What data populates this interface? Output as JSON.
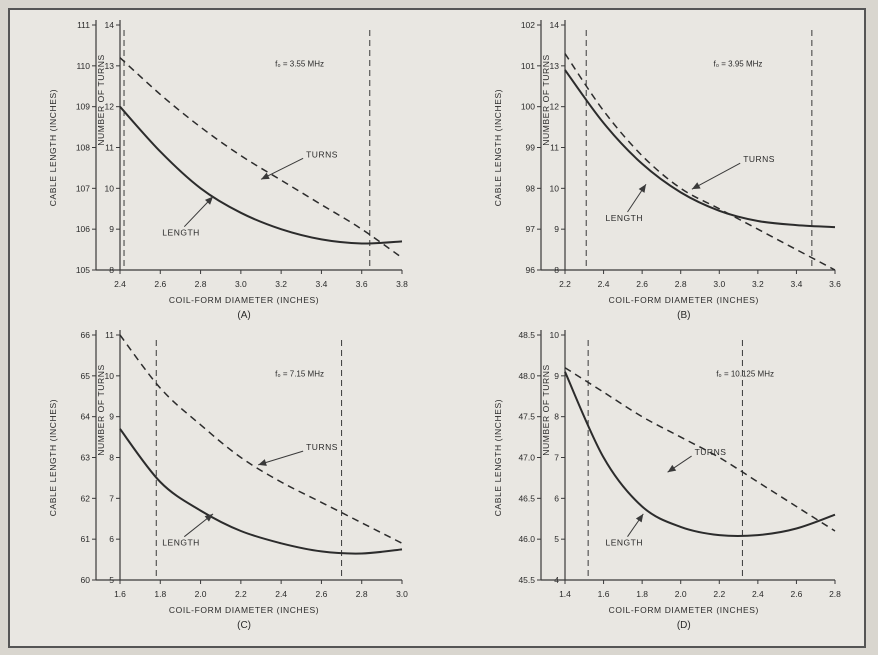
{
  "chart_data": [
    {
      "type": "line",
      "panel": "(A)",
      "annotation": "f₀ = 3.55 MHz",
      "xlabel": "COIL-FORM DIAMETER (INCHES)",
      "ylabel_left": "CABLE LENGTH (INCHES)",
      "ylabel_right": "NUMBER OF TURNS",
      "xlim": [
        2.4,
        3.8
      ],
      "xticks": [
        "2.4",
        "2.6",
        "2.8",
        "3.0",
        "3.2",
        "3.4",
        "3.6",
        "3.8"
      ],
      "ylim_left": [
        105,
        111
      ],
      "yticks_left": [
        "105",
        "106",
        "107",
        "108",
        "109",
        "110",
        "111"
      ],
      "ylim_right": [
        8,
        14
      ],
      "yticks_right": [
        "8",
        "9",
        "10",
        "11",
        "12",
        "13",
        "14"
      ],
      "vlines": [
        2.42,
        3.64
      ],
      "series": [
        {
          "name": "LENGTH",
          "axis": "left",
          "style": "solid",
          "x": [
            2.4,
            2.6,
            2.8,
            3.0,
            3.2,
            3.4,
            3.6,
            3.8
          ],
          "y": [
            109.0,
            107.9,
            107.0,
            106.4,
            106.0,
            105.75,
            105.65,
            105.7
          ]
        },
        {
          "name": "TURNS",
          "axis": "right",
          "style": "dashed",
          "x": [
            2.4,
            2.6,
            2.8,
            3.0,
            3.2,
            3.4,
            3.6,
            3.8
          ],
          "y": [
            13.2,
            12.3,
            11.5,
            10.8,
            10.2,
            9.6,
            9.0,
            8.3
          ]
        }
      ]
    },
    {
      "type": "line",
      "panel": "(B)",
      "annotation": "f₀ = 3.95 MHz",
      "xlabel": "COIL-FORM DIAMETER (INCHES)",
      "ylabel_left": "CABLE LENGTH (INCHES)",
      "ylabel_right": "NUMBER OF TURNS",
      "xlim": [
        2.2,
        3.6
      ],
      "xticks": [
        "2.2",
        "2.4",
        "2.6",
        "2.8",
        "3.0",
        "3.2",
        "3.4",
        "3.6"
      ],
      "ylim_left": [
        96,
        102
      ],
      "yticks_left": [
        "96",
        "97",
        "98",
        "99",
        "100",
        "101",
        "102"
      ],
      "ylim_right": [
        8,
        14
      ],
      "yticks_right": [
        "8",
        "9",
        "10",
        "11",
        "12",
        "13",
        "14"
      ],
      "vlines": [
        2.31,
        3.48
      ],
      "series": [
        {
          "name": "LENGTH",
          "axis": "left",
          "style": "solid",
          "x": [
            2.2,
            2.4,
            2.6,
            2.8,
            3.0,
            3.2,
            3.4,
            3.6
          ],
          "y": [
            100.9,
            99.6,
            98.6,
            97.9,
            97.45,
            97.2,
            97.1,
            97.05
          ]
        },
        {
          "name": "TURNS",
          "axis": "right",
          "style": "dashed",
          "x": [
            2.2,
            2.4,
            2.6,
            2.8,
            3.0,
            3.2,
            3.4,
            3.6
          ],
          "y": [
            13.3,
            11.9,
            10.8,
            10.0,
            9.5,
            9.0,
            8.5,
            8.0
          ]
        }
      ]
    },
    {
      "type": "line",
      "panel": "(C)",
      "annotation": "f₀ = 7.15 MHz",
      "xlabel": "COIL-FORM DIAMETER (INCHES)",
      "ylabel_left": "CABLE LENGTH (INCHES)",
      "ylabel_right": "NUMBER OF TURNS",
      "xlim": [
        1.6,
        3.0
      ],
      "xticks": [
        "1.6",
        "1.8",
        "2.0",
        "2.2",
        "2.4",
        "2.6",
        "2.8",
        "3.0"
      ],
      "ylim_left": [
        60,
        66
      ],
      "yticks_left": [
        "60",
        "61",
        "62",
        "63",
        "64",
        "65",
        "66"
      ],
      "ylim_right": [
        5,
        11
      ],
      "yticks_right": [
        "5",
        "6",
        "7",
        "8",
        "9",
        "10",
        "11"
      ],
      "vlines": [
        1.78,
        2.7
      ],
      "series": [
        {
          "name": "LENGTH",
          "axis": "left",
          "style": "solid",
          "x": [
            1.6,
            1.8,
            2.0,
            2.2,
            2.4,
            2.6,
            2.8,
            3.0
          ],
          "y": [
            63.7,
            62.4,
            61.7,
            61.2,
            60.9,
            60.7,
            60.65,
            60.75
          ]
        },
        {
          "name": "TURNS",
          "axis": "right",
          "style": "dashed",
          "x": [
            1.6,
            1.8,
            2.0,
            2.2,
            2.4,
            2.6,
            2.8,
            3.0
          ],
          "y": [
            11.0,
            9.7,
            8.8,
            8.0,
            7.4,
            6.9,
            6.4,
            5.9
          ]
        }
      ]
    },
    {
      "type": "line",
      "panel": "(D)",
      "annotation": "f₀ = 10.125 MHz",
      "xlabel": "COIL-FORM DIAMETER (INCHES)",
      "ylabel_left": "CABLE LENGTH (INCHES)",
      "ylabel_right": "NUMBER OF TURNS",
      "xlim": [
        1.4,
        2.8
      ],
      "xticks": [
        "1.4",
        "1.6",
        "1.8",
        "2.0",
        "2.2",
        "2.4",
        "2.6",
        "2.8"
      ],
      "ylim_left": [
        45.5,
        48.5
      ],
      "yticks_left": [
        "45.5",
        "46.0",
        "46.5",
        "47.0",
        "47.5",
        "48.0",
        "48.5"
      ],
      "ylim_right": [
        4,
        10
      ],
      "yticks_right": [
        "4",
        "5",
        "6",
        "7",
        "8",
        "9",
        "10"
      ],
      "vlines": [
        1.52,
        2.32
      ],
      "series": [
        {
          "name": "LENGTH",
          "axis": "left",
          "style": "solid",
          "x": [
            1.4,
            1.6,
            1.8,
            2.0,
            2.2,
            2.4,
            2.6,
            2.8
          ],
          "y": [
            48.05,
            47.0,
            46.4,
            46.15,
            46.05,
            46.05,
            46.13,
            46.3
          ]
        },
        {
          "name": "TURNS",
          "axis": "right",
          "style": "dashed",
          "x": [
            1.4,
            1.6,
            1.8,
            2.0,
            2.2,
            2.4,
            2.6,
            2.8
          ],
          "y": [
            9.2,
            8.6,
            8.0,
            7.5,
            7.0,
            6.4,
            5.8,
            5.2
          ]
        }
      ]
    }
  ]
}
